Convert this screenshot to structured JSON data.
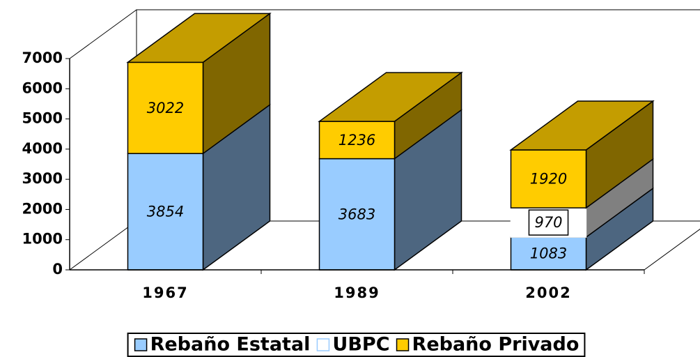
{
  "chart_data": {
    "type": "bar3d-stacked",
    "categories": [
      "1967",
      "1989",
      "2002"
    ],
    "series": [
      {
        "name": "Rebaño Estatal",
        "color": "#99ccff",
        "values": [
          3854,
          3683,
          1083
        ]
      },
      {
        "name": "UBPC",
        "color": "#ffffff",
        "values": [
          null,
          null,
          970
        ]
      },
      {
        "name": "Rebaño Privado",
        "color": "#ffcc00",
        "values": [
          3022,
          1236,
          1920
        ]
      }
    ],
    "ylim": [
      0,
      7000
    ],
    "yticks": [
      0,
      1000,
      2000,
      3000,
      4000,
      5000,
      6000,
      7000
    ],
    "legend": "bottom"
  }
}
